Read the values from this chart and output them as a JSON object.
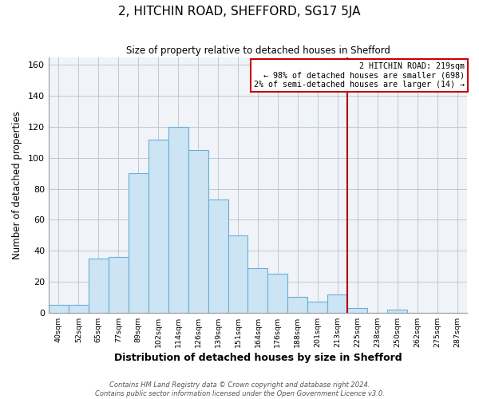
{
  "title": "2, HITCHIN ROAD, SHEFFORD, SG17 5JA",
  "subtitle": "Size of property relative to detached houses in Shefford",
  "xlabel": "Distribution of detached houses by size in Shefford",
  "ylabel": "Number of detached properties",
  "footer_lines": [
    "Contains HM Land Registry data © Crown copyright and database right 2024.",
    "Contains public sector information licensed under the Open Government Licence v3.0."
  ],
  "bin_labels": [
    "40sqm",
    "52sqm",
    "65sqm",
    "77sqm",
    "89sqm",
    "102sqm",
    "114sqm",
    "126sqm",
    "139sqm",
    "151sqm",
    "164sqm",
    "176sqm",
    "188sqm",
    "201sqm",
    "213sqm",
    "225sqm",
    "238sqm",
    "250sqm",
    "262sqm",
    "275sqm",
    "287sqm"
  ],
  "bar_heights": [
    5,
    5,
    35,
    36,
    90,
    112,
    120,
    105,
    73,
    50,
    29,
    25,
    10,
    7,
    12,
    3,
    0,
    2,
    0,
    0,
    0
  ],
  "bar_color": "#cde4f5",
  "bar_edge_color": "#6aaed6",
  "vline_x_index": 15,
  "vline_color": "#aa0000",
  "annotation_title": "2 HITCHIN ROAD: 219sqm",
  "annotation_line1": "← 98% of detached houses are smaller (698)",
  "annotation_line2": "2% of semi-detached houses are larger (14) →",
  "annotation_box_color": "#ffffff",
  "annotation_box_edge_color": "#cc0000",
  "ylim": [
    0,
    165
  ],
  "xlim_left": 0,
  "xlim_right": 21,
  "bg_color": "#f0f4f8",
  "yticks": [
    0,
    20,
    40,
    60,
    80,
    100,
    120,
    140,
    160
  ]
}
